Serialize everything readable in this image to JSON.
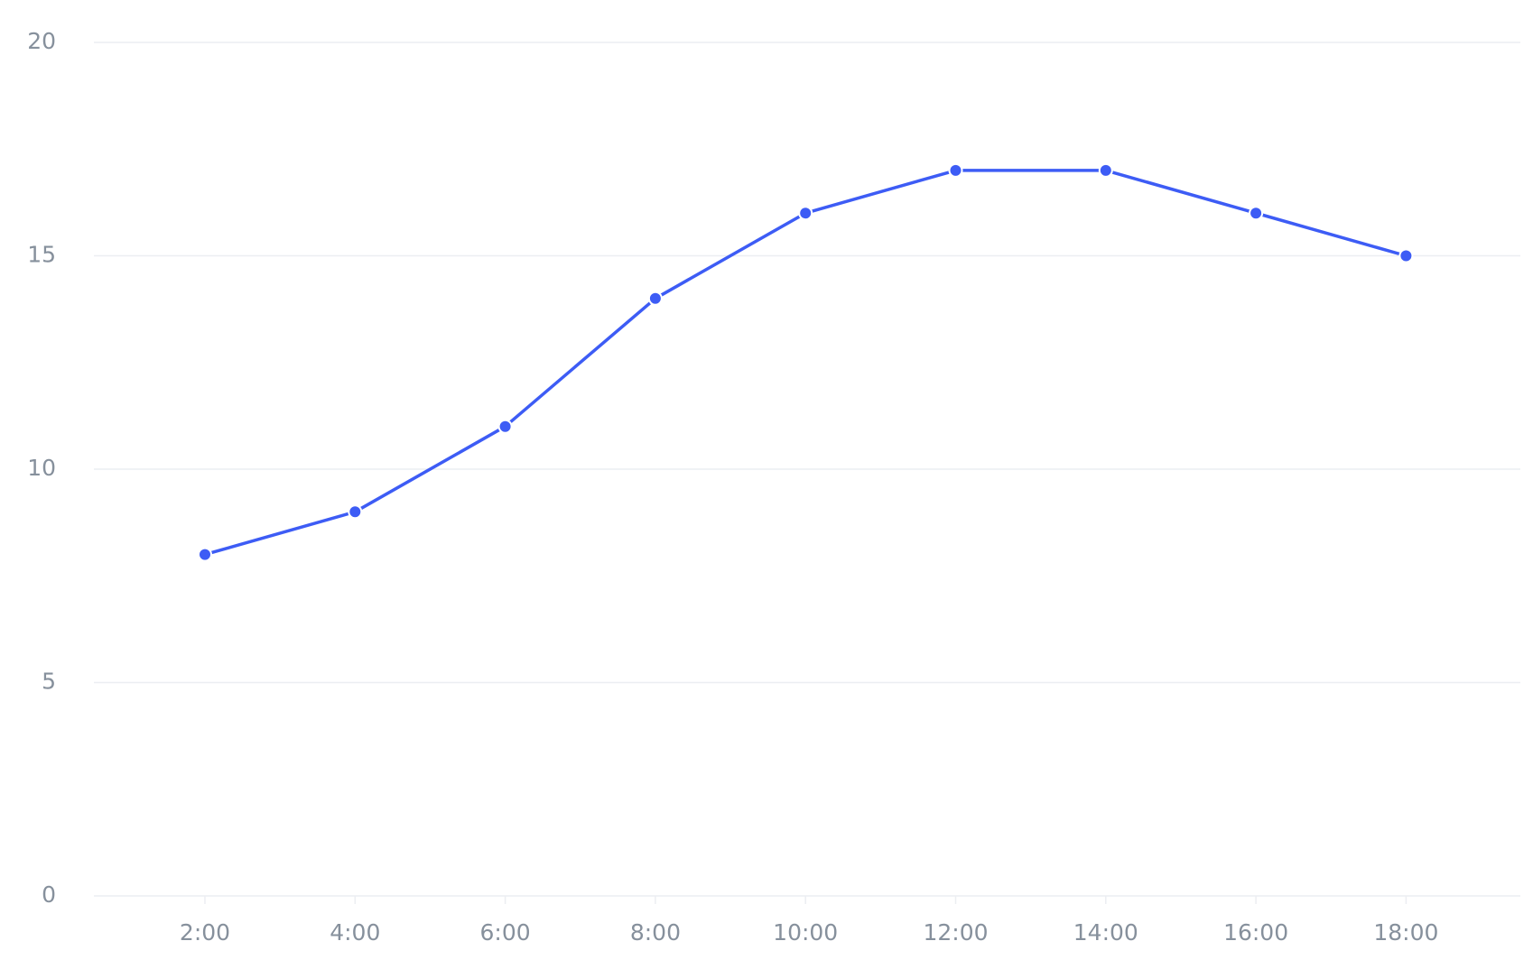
{
  "chart_data": {
    "type": "line",
    "categories": [
      "2:00",
      "4:00",
      "6:00",
      "8:00",
      "10:00",
      "12:00",
      "14:00",
      "16:00",
      "18:00"
    ],
    "series": [
      {
        "color": "#3d5cf5",
        "values": [
          8,
          9,
          11,
          14,
          16,
          17,
          17,
          16,
          15
        ]
      }
    ],
    "ylim": [
      0,
      20
    ],
    "yticks": [
      0,
      5,
      10,
      15,
      20
    ],
    "grid": true
  }
}
